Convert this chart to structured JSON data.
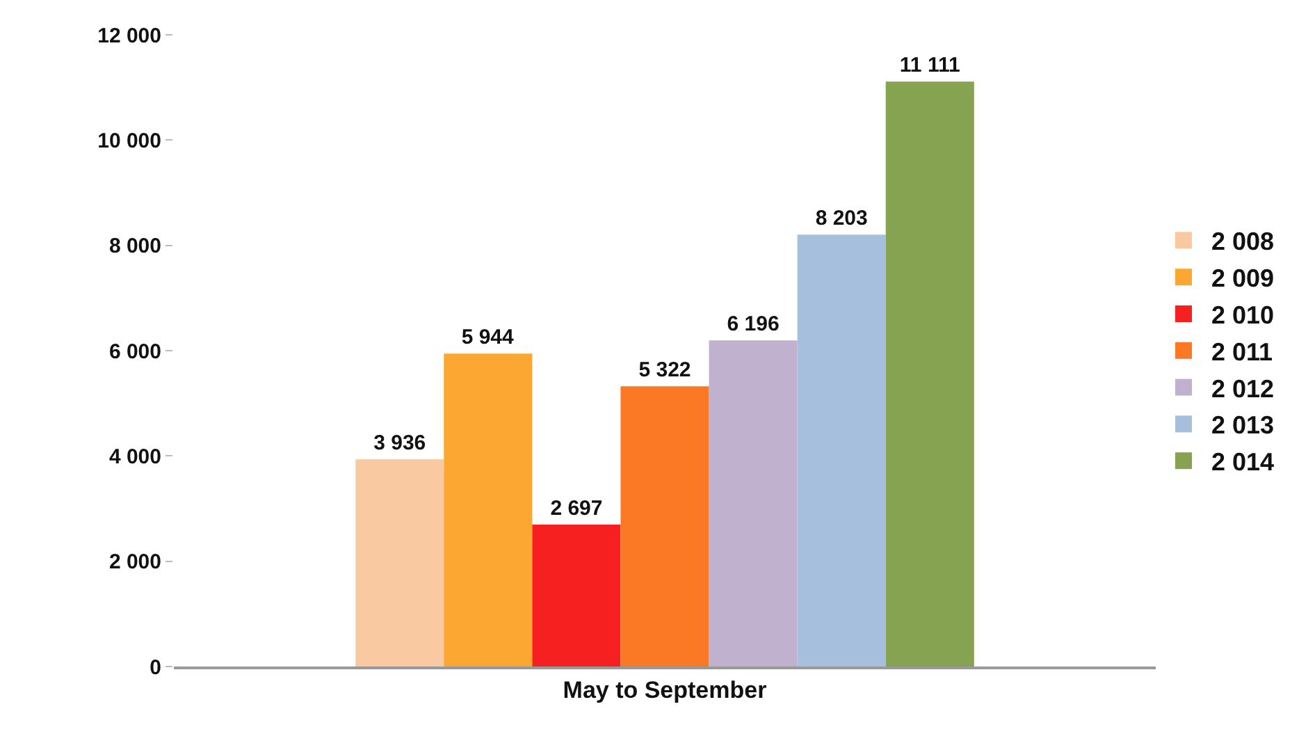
{
  "chart_data": {
    "type": "bar",
    "categories": [
      "May to September"
    ],
    "series": [
      {
        "name": "2 008",
        "color": "#f9c9a1",
        "values": [
          3936
        ],
        "value_labels": [
          "3 936"
        ]
      },
      {
        "name": "2 009",
        "color": "#fba732",
        "values": [
          5944
        ],
        "value_labels": [
          "5 944"
        ]
      },
      {
        "name": "2 010",
        "color": "#f5201f",
        "values": [
          2697
        ],
        "value_labels": [
          "2 697"
        ]
      },
      {
        "name": "2 011",
        "color": "#fb7924",
        "values": [
          5322
        ],
        "value_labels": [
          "5 322"
        ]
      },
      {
        "name": "2 012",
        "color": "#c0b1cf",
        "values": [
          6196
        ],
        "value_labels": [
          "6 196"
        ]
      },
      {
        "name": "2 013",
        "color": "#a6bfdc",
        "values": [
          8203
        ],
        "value_labels": [
          "8 203"
        ]
      },
      {
        "name": "2 014",
        "color": "#86a352",
        "values": [
          11111
        ],
        "value_labels": [
          "11 111"
        ]
      }
    ],
    "ylim": [
      0,
      12000
    ],
    "yticks": [
      {
        "value": 0,
        "label": "0"
      },
      {
        "value": 2000,
        "label": "2 000"
      },
      {
        "value": 4000,
        "label": "4 000"
      },
      {
        "value": 6000,
        "label": "6 000"
      },
      {
        "value": 8000,
        "label": "8 000"
      },
      {
        "value": 10000,
        "label": "10 000"
      },
      {
        "value": 12000,
        "label": "12 000"
      }
    ],
    "grid": false,
    "legend": "right"
  }
}
